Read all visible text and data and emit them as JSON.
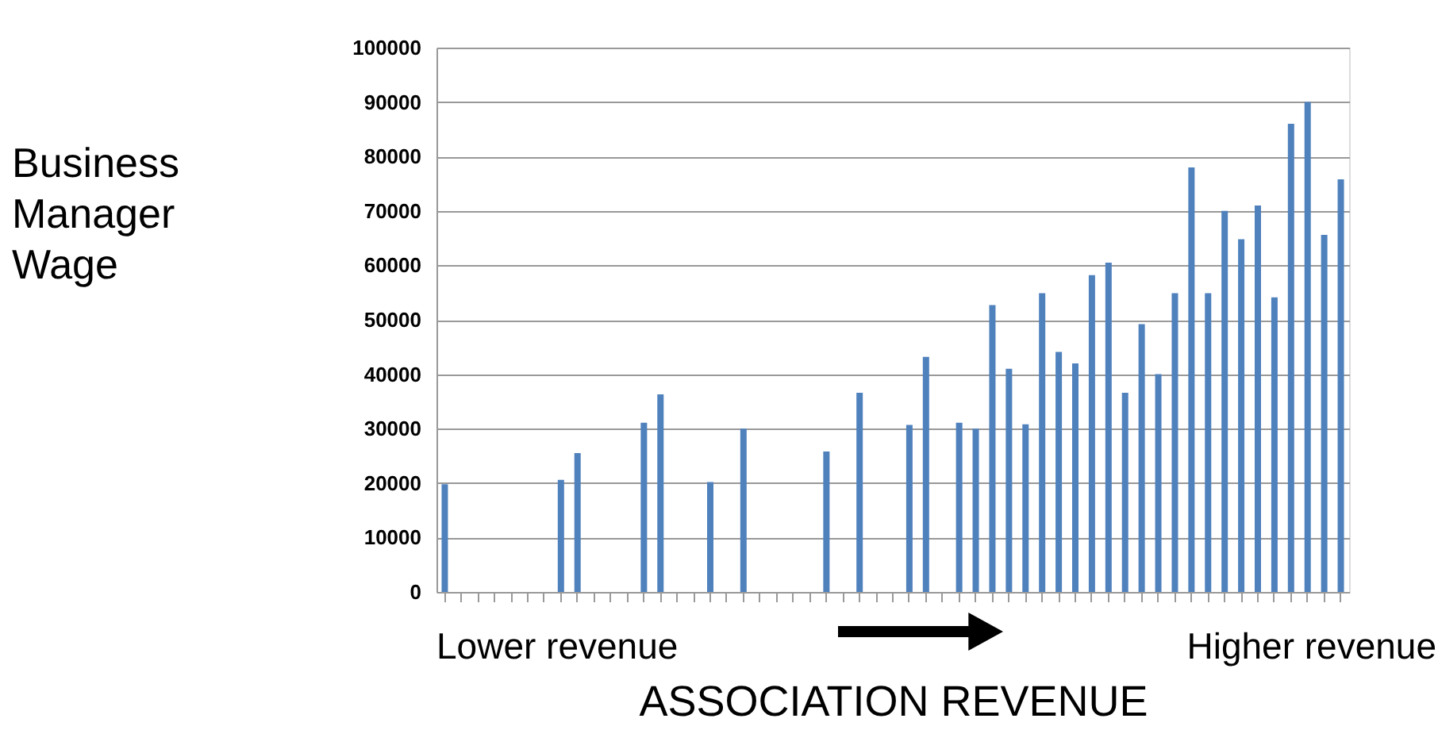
{
  "chart_data": {
    "type": "bar",
    "ylabel": "Business Manager Wage",
    "xlabel": "ASSOCIATION REVENUE",
    "annotations": [
      "Lower revenue",
      "Higher revenue"
    ],
    "categories": [
      null,
      null,
      null,
      null,
      null,
      null,
      null,
      null,
      null,
      null,
      null,
      null,
      null,
      null,
      null,
      null,
      null,
      null,
      null,
      null,
      null,
      null,
      null,
      null,
      null,
      null,
      null,
      null,
      null,
      null,
      null,
      null,
      null,
      null,
      null,
      null,
      null,
      null,
      null,
      null,
      null,
      null,
      null,
      null,
      null,
      null,
      null,
      null,
      null,
      null,
      null,
      null,
      null,
      null,
      null
    ],
    "series": [
      {
        "color": "#4f81bd",
        "values": [
          19800,
          null,
          null,
          null,
          null,
          null,
          null,
          20600,
          25500,
          null,
          null,
          null,
          31100,
          36300,
          null,
          null,
          20200,
          null,
          30000,
          null,
          null,
          null,
          null,
          25800,
          null,
          36600,
          null,
          null,
          30700,
          43200,
          null,
          31100,
          30000,
          52700,
          41000,
          30800,
          54900,
          44100,
          42000,
          58200,
          60500,
          36600,
          49200,
          40000,
          54900,
          78000,
          54900,
          70000,
          64800,
          71000,
          54100,
          86000,
          90000,
          65600,
          75800
        ]
      }
    ],
    "ylim": [
      0,
      100000
    ],
    "yticks": [
      0,
      10000,
      20000,
      30000,
      40000,
      50000,
      60000,
      70000,
      80000,
      90000,
      100000
    ],
    "grid": "y",
    "tick_labels": "y"
  }
}
